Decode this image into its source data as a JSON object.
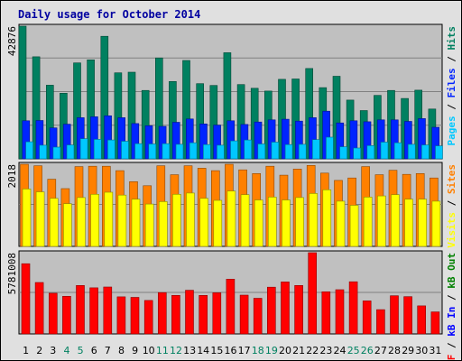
{
  "chart_data": {
    "type": "bar",
    "title": "Daily usage for October 2014",
    "categories": [
      "1",
      "2",
      "3",
      "4",
      "5",
      "6",
      "7",
      "8",
      "9",
      "10",
      "11",
      "12",
      "13",
      "14",
      "15",
      "16",
      "17",
      "18",
      "19",
      "20",
      "21",
      "22",
      "23",
      "24",
      "25",
      "26",
      "27",
      "28",
      "29",
      "30",
      "31"
    ],
    "weekend_days": [
      "4",
      "5",
      "11",
      "12",
      "18",
      "19",
      "25",
      "26"
    ],
    "panels": [
      {
        "id": "hits-panel",
        "max_label": "42876",
        "ylim": [
          0,
          42876
        ],
        "legend": [
          {
            "text": "Pages",
            "color": "#00c8ff"
          },
          {
            "text": " / ",
            "color": "#000000"
          },
          {
            "text": "Files",
            "color": "#0024ff"
          },
          {
            "text": " / ",
            "color": "#000000"
          },
          {
            "text": "Hits",
            "color": "#008060"
          }
        ],
        "series": [
          {
            "name": "Hits",
            "color": "#008060",
            "values": [
              42876,
              33000,
              23800,
              21200,
              31000,
              32000,
              39600,
              27800,
              28000,
              22100,
              32600,
              25000,
              31800,
              24300,
              23700,
              34300,
              24000,
              22800,
              21900,
              25700,
              25800,
              29200,
              23000,
              26700,
              19000,
              15600,
              20500,
              22100,
              19500,
              22200,
              16100
            ]
          },
          {
            "name": "Files",
            "color": "#0024ff",
            "values": [
              12300,
              12400,
              10000,
              11200,
              13300,
              13600,
              13900,
              13300,
              11400,
              10700,
              10500,
              11800,
              12900,
              11300,
              10900,
              12300,
              11100,
              11900,
              12600,
              12800,
              12200,
              13300,
              15400,
              11600,
              12300,
              12000,
              12600,
              12600,
              12100,
              13000,
              10200
            ]
          },
          {
            "name": "Pages",
            "color": "#00c8ff",
            "values": [
              5500,
              4400,
              3800,
              4500,
              6500,
              6300,
              6100,
              5700,
              4900,
              4800,
              4900,
              4700,
              5200,
              4600,
              4400,
              5800,
              6100,
              4800,
              5400,
              4600,
              4700,
              6200,
              7000,
              3900,
              3500,
              4300,
              5400,
              5200,
              4700,
              4500,
              4200
            ]
          }
        ]
      },
      {
        "id": "sites-panel",
        "max_label": "2018",
        "ylim": [
          0,
          2018
        ],
        "legend": [
          {
            "text": "Visits",
            "color": "#ffff00"
          },
          {
            "text": " / ",
            "color": "#000000"
          },
          {
            "text": "Sites",
            "color": "#ff8000"
          }
        ],
        "series": [
          {
            "name": "Sites",
            "color": "#ff8000",
            "values": [
              2018,
              1980,
              1650,
              1420,
              1960,
              1970,
              1970,
              1860,
              1590,
              1490,
              1980,
              1760,
              1980,
              1920,
              1860,
              2018,
              1880,
              1790,
              1970,
              1750,
              1900,
              1990,
              1800,
              1620,
              1680,
              1960,
              1760,
              1870,
              1770,
              1790,
              1680
            ]
          },
          {
            "name": "Visits",
            "color": "#ffff00",
            "values": [
              1410,
              1340,
              1180,
              1050,
              1200,
              1280,
              1330,
              1260,
              1160,
              1040,
              1100,
              1280,
              1310,
              1180,
              1130,
              1360,
              1270,
              1140,
              1210,
              1140,
              1200,
              1300,
              1390,
              1110,
              1010,
              1210,
              1240,
              1270,
              1160,
              1160,
              1110
            ]
          }
        ]
      },
      {
        "id": "kbytes-panel",
        "max_label": "5781008",
        "ylim": [
          0,
          5781008
        ],
        "legend": [
          {
            "text": "kB F",
            "color": "#ff0000"
          },
          {
            "text": " / ",
            "color": "#000000"
          },
          {
            "text": "kB In",
            "color": "#0000ff"
          },
          {
            "text": " / ",
            "color": "#000000"
          },
          {
            "text": "kB Out",
            "color": "#008000"
          }
        ],
        "series": [
          {
            "name": "kB F",
            "color": "#ff0000",
            "values": [
              5000000,
              3660000,
              2900000,
              2680000,
              3450000,
              3280000,
              3340000,
              2640000,
              2600000,
              2380000,
              2940000,
              2740000,
              3110000,
              2740000,
              2930000,
              3900000,
              2760000,
              2540000,
              3330000,
              3700000,
              3450000,
              5781008,
              3000000,
              3150000,
              3710000,
              2350000,
              1730000,
              2720000,
              2650000,
              2000000,
              1570000
            ]
          }
        ]
      }
    ]
  }
}
